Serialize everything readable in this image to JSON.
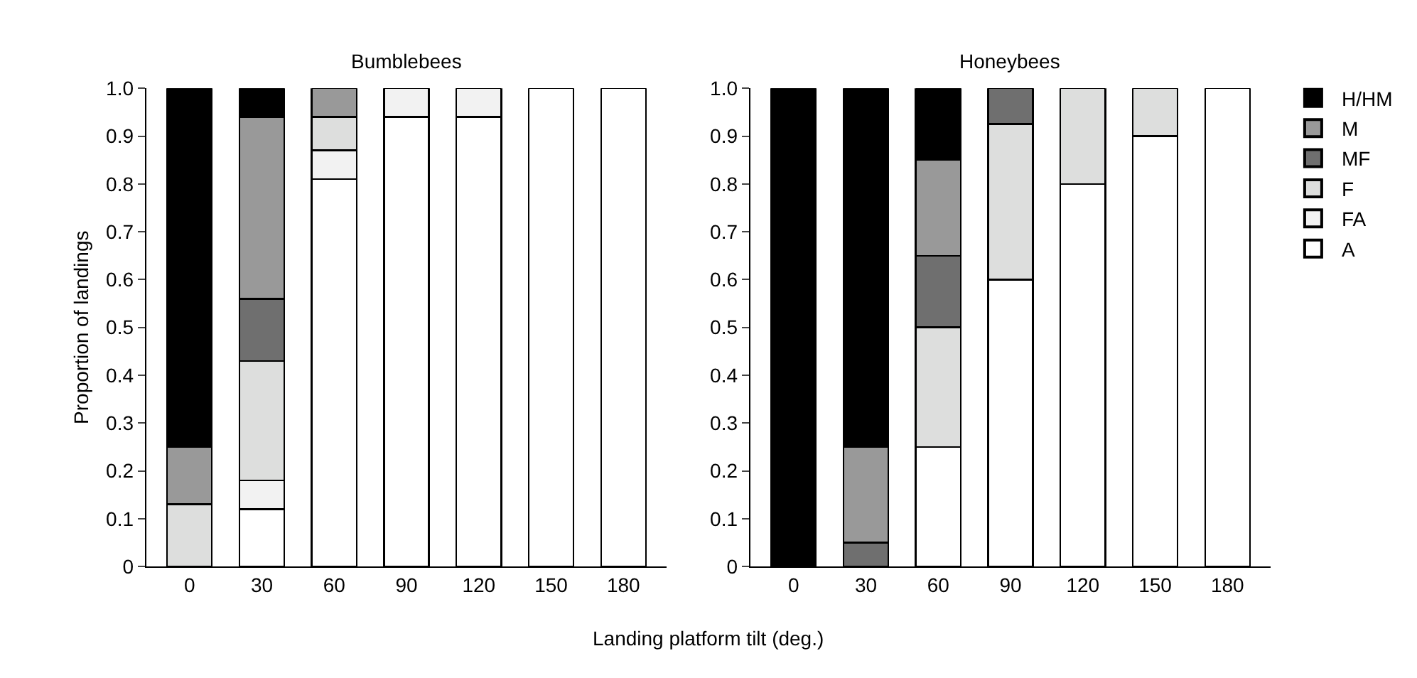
{
  "chart_data": [
    {
      "type": "bar",
      "stacked": true,
      "title": "Bumblebees",
      "xlabel": "Landing platform tilt (deg.)",
      "ylabel": "Proportion of landings",
      "categories": [
        "0",
        "30",
        "60",
        "90",
        "120",
        "150",
        "180"
      ],
      "ylim": [
        0,
        1.0
      ],
      "yticks": [
        0,
        0.1,
        0.2,
        0.3,
        0.4,
        0.5,
        0.6,
        0.7,
        0.8,
        0.9,
        {
          "value": 1.0,
          "label": "1.0"
        }
      ],
      "legend": false,
      "series": [
        {
          "color": "#ffffff",
          "values": [
            0,
            0.12,
            0.81,
            0.94,
            0.94,
            1.0,
            1.0
          ]
        },
        {
          "color": "#f2f2f2",
          "values": [
            0,
            0.06,
            0.06,
            0.06,
            0.06,
            0,
            0
          ]
        },
        {
          "color": "#dddedd",
          "values": [
            0.13,
            0.25,
            0.07,
            0,
            0,
            0,
            0
          ]
        },
        {
          "color": "#6f6f6f",
          "values": [
            0,
            0.13,
            0,
            0,
            0,
            0,
            0
          ]
        },
        {
          "color": "#999999",
          "values": [
            0.12,
            0.38,
            0.06,
            0,
            0,
            0,
            0
          ]
        },
        {
          "color": "#000000",
          "values": [
            0.75,
            0.06,
            0,
            0,
            0,
            0,
            0
          ]
        }
      ]
    },
    {
      "type": "bar",
      "stacked": true,
      "title": "Honeybees",
      "categories": [
        "0",
        "30",
        "60",
        "90",
        "120",
        "150",
        "180"
      ],
      "ylim": [
        0,
        1.0
      ],
      "yticks": [
        0,
        0.1,
        0.2,
        0.3,
        0.4,
        0.5,
        0.6,
        0.7,
        0.8,
        0.9,
        {
          "value": 1.0,
          "label": "1.0"
        }
      ],
      "legend": "right",
      "series": [
        {
          "name": "A",
          "color": "#ffffff",
          "values": [
            0,
            0,
            0.25,
            0.6,
            0.8,
            0.9,
            1.0
          ]
        },
        {
          "name": "FA",
          "color": "#f2f2f2",
          "values": [
            0,
            0,
            0,
            0,
            0,
            0,
            0
          ]
        },
        {
          "name": "F",
          "color": "#dddedd",
          "values": [
            0,
            0,
            0.25,
            0.325,
            0.2,
            0.1,
            0
          ]
        },
        {
          "name": "MF",
          "color": "#6f6f6f",
          "values": [
            0,
            0.05,
            0.15,
            0.075,
            0,
            0,
            0
          ]
        },
        {
          "name": "M",
          "color": "#999999",
          "values": [
            0,
            0.2,
            0.2,
            0,
            0,
            0,
            0
          ]
        },
        {
          "name": "H/HM",
          "color": "#000000",
          "values": [
            1.0,
            0.75,
            0.15,
            0,
            0,
            0,
            0
          ]
        }
      ]
    }
  ]
}
